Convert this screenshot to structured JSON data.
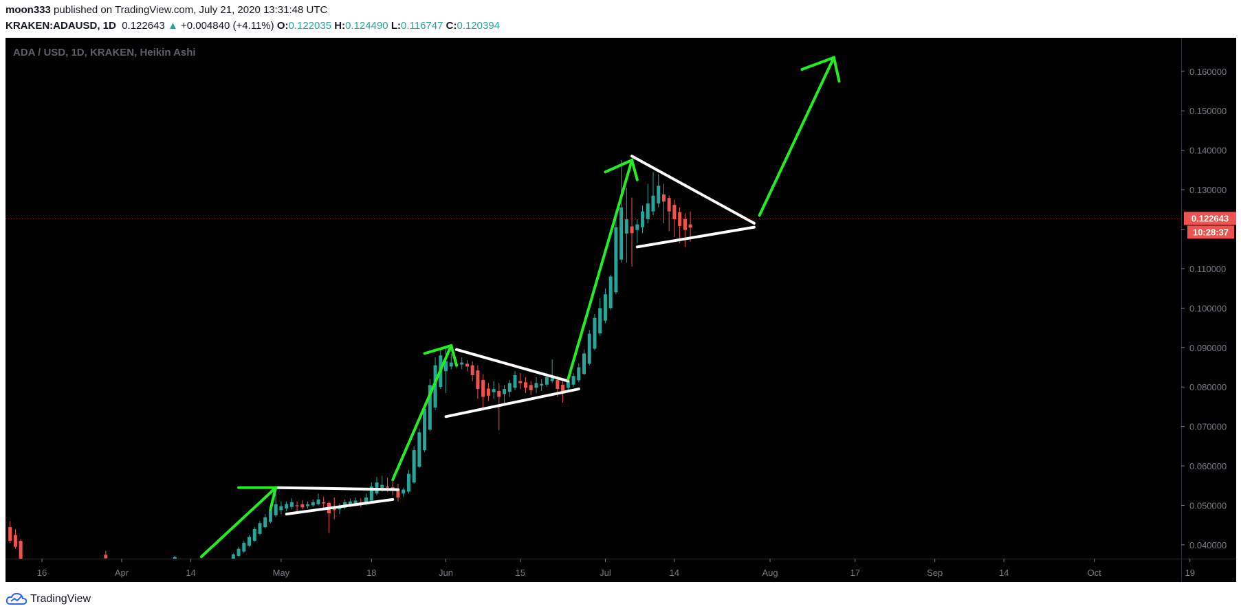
{
  "header": {
    "author": "moon333",
    "published_text": "published on TradingView.com, July 21, 2020 13:31:48 UTC",
    "symbol": "KRAKEN:ADAUSD, 1D",
    "last": "0.122643",
    "change_arrow": "▲",
    "change": "+0.004840 (+4.11%)",
    "o_label": "O:",
    "o": "0.122035",
    "h_label": "H:",
    "h": "0.124490",
    "l_label": "L:",
    "l": "0.116747",
    "c_label": "C:",
    "c": "0.120394"
  },
  "footer": {
    "brand": "TradingView"
  },
  "chart_data": {
    "type": "candlestick",
    "title": "ADA / USD, 1D, KRAKEN, Heikin Ashi",
    "chart_type": "Heikin Ashi",
    "background": "#000000",
    "up_color": "#26a69a",
    "down_color": "#ef5350",
    "drawing_arrow_color": "#22ee22",
    "drawing_line_color": "#ffffff",
    "ylim": [
      0.0365,
      0.1685
    ],
    "y_ticks": [
      "0.040000",
      "0.050000",
      "0.060000",
      "0.070000",
      "0.080000",
      "0.090000",
      "0.100000",
      "0.110000",
      "0.120000",
      "0.130000",
      "0.140000",
      "0.150000",
      "0.160000"
    ],
    "x_ticks": [
      {
        "label": "16",
        "day": -15
      },
      {
        "label": "Apr",
        "day": 0
      },
      {
        "label": "14",
        "day": 13
      },
      {
        "label": "May",
        "day": 30
      },
      {
        "label": "18",
        "day": 47
      },
      {
        "label": "Jun",
        "day": 61
      },
      {
        "label": "15",
        "day": 75
      },
      {
        "label": "Jul",
        "day": 91
      },
      {
        "label": "14",
        "day": 104
      },
      {
        "label": "Aug",
        "day": 122
      },
      {
        "label": "17",
        "day": 138
      },
      {
        "label": "Sep",
        "day": 153
      },
      {
        "label": "14",
        "day": 166
      },
      {
        "label": "Oct",
        "day": 183
      },
      {
        "label": "19",
        "day": 201
      }
    ],
    "price_label": {
      "value": 0.122643,
      "text": "0.122643",
      "countdown": "10:28:37",
      "color": "#ef5350"
    },
    "candles": [
      {
        "d": -21,
        "o": 0.0445,
        "h": 0.046,
        "l": 0.0405,
        "c": 0.041
      },
      {
        "d": -20,
        "o": 0.0425,
        "h": 0.044,
        "l": 0.039,
        "c": 0.0395
      },
      {
        "d": -19,
        "o": 0.041,
        "h": 0.0415,
        "l": 0.035,
        "c": 0.036
      },
      {
        "d": -3,
        "o": 0.0375,
        "h": 0.0385,
        "l": 0.0362,
        "c": 0.0366
      },
      {
        "d": 10,
        "o": 0.036,
        "h": 0.0372,
        "l": 0.0355,
        "c": 0.0369
      },
      {
        "d": 21,
        "o": 0.036,
        "h": 0.0378,
        "l": 0.0355,
        "c": 0.0376
      },
      {
        "d": 22,
        "o": 0.0372,
        "h": 0.0395,
        "l": 0.037,
        "c": 0.039
      },
      {
        "d": 23,
        "o": 0.0383,
        "h": 0.041,
        "l": 0.038,
        "c": 0.0405
      },
      {
        "d": 24,
        "o": 0.0398,
        "h": 0.0425,
        "l": 0.0395,
        "c": 0.042
      },
      {
        "d": 25,
        "o": 0.041,
        "h": 0.0445,
        "l": 0.0408,
        "c": 0.044
      },
      {
        "d": 26,
        "o": 0.0428,
        "h": 0.046,
        "l": 0.0425,
        "c": 0.0455
      },
      {
        "d": 27,
        "o": 0.0445,
        "h": 0.0478,
        "l": 0.0442,
        "c": 0.047
      },
      {
        "d": 28,
        "o": 0.0458,
        "h": 0.0492,
        "l": 0.0455,
        "c": 0.0488
      },
      {
        "d": 29,
        "o": 0.0475,
        "h": 0.0528,
        "l": 0.047,
        "c": 0.0503
      },
      {
        "d": 30,
        "o": 0.0488,
        "h": 0.051,
        "l": 0.0478,
        "c": 0.0498
      },
      {
        "d": 31,
        "o": 0.0492,
        "h": 0.051,
        "l": 0.0485,
        "c": 0.0503
      },
      {
        "d": 32,
        "o": 0.0496,
        "h": 0.0518,
        "l": 0.049,
        "c": 0.0508
      },
      {
        "d": 33,
        "o": 0.05,
        "h": 0.051,
        "l": 0.0478,
        "c": 0.0498
      },
      {
        "d": 34,
        "o": 0.0503,
        "h": 0.0513,
        "l": 0.049,
        "c": 0.0495
      },
      {
        "d": 35,
        "o": 0.0498,
        "h": 0.051,
        "l": 0.0492,
        "c": 0.0503
      },
      {
        "d": 36,
        "o": 0.05,
        "h": 0.0515,
        "l": 0.0496,
        "c": 0.0508
      },
      {
        "d": 37,
        "o": 0.0503,
        "h": 0.053,
        "l": 0.05,
        "c": 0.0515
      },
      {
        "d": 38,
        "o": 0.0508,
        "h": 0.0522,
        "l": 0.0488,
        "c": 0.0505
      },
      {
        "d": 39,
        "o": 0.0506,
        "h": 0.051,
        "l": 0.043,
        "c": 0.048
      },
      {
        "d": 40,
        "o": 0.0495,
        "h": 0.052,
        "l": 0.0465,
        "c": 0.0488
      },
      {
        "d": 41,
        "o": 0.049,
        "h": 0.0505,
        "l": 0.0478,
        "c": 0.0498
      },
      {
        "d": 42,
        "o": 0.0494,
        "h": 0.0515,
        "l": 0.049,
        "c": 0.0508
      },
      {
        "d": 43,
        "o": 0.05,
        "h": 0.0518,
        "l": 0.0496,
        "c": 0.051
      },
      {
        "d": 44,
        "o": 0.0505,
        "h": 0.052,
        "l": 0.0498,
        "c": 0.0512
      },
      {
        "d": 45,
        "o": 0.0508,
        "h": 0.0518,
        "l": 0.0495,
        "c": 0.0503
      },
      {
        "d": 46,
        "o": 0.0505,
        "h": 0.053,
        "l": 0.05,
        "c": 0.052
      },
      {
        "d": 47,
        "o": 0.0512,
        "h": 0.0558,
        "l": 0.0508,
        "c": 0.0548
      },
      {
        "d": 48,
        "o": 0.053,
        "h": 0.0572,
        "l": 0.0525,
        "c": 0.0558
      },
      {
        "d": 49,
        "o": 0.0544,
        "h": 0.0575,
        "l": 0.0535,
        "c": 0.0552
      },
      {
        "d": 50,
        "o": 0.0548,
        "h": 0.057,
        "l": 0.0535,
        "c": 0.0545
      },
      {
        "d": 51,
        "o": 0.0546,
        "h": 0.0562,
        "l": 0.0525,
        "c": 0.0538
      },
      {
        "d": 52,
        "o": 0.0542,
        "h": 0.0555,
        "l": 0.051,
        "c": 0.052
      },
      {
        "d": 53,
        "o": 0.053,
        "h": 0.0545,
        "l": 0.0522,
        "c": 0.054
      },
      {
        "d": 54,
        "o": 0.0535,
        "h": 0.059,
        "l": 0.053,
        "c": 0.058
      },
      {
        "d": 55,
        "o": 0.0558,
        "h": 0.065,
        "l": 0.0555,
        "c": 0.064
      },
      {
        "d": 56,
        "o": 0.0598,
        "h": 0.0695,
        "l": 0.0595,
        "c": 0.0685
      },
      {
        "d": 57,
        "o": 0.064,
        "h": 0.0755,
        "l": 0.0635,
        "c": 0.0745
      },
      {
        "d": 58,
        "o": 0.0692,
        "h": 0.082,
        "l": 0.0688,
        "c": 0.0805
      },
      {
        "d": 59,
        "o": 0.0748,
        "h": 0.0875,
        "l": 0.0742,
        "c": 0.0855
      },
      {
        "d": 60,
        "o": 0.08,
        "h": 0.0895,
        "l": 0.0795,
        "c": 0.088
      },
      {
        "d": 61,
        "o": 0.084,
        "h": 0.0905,
        "l": 0.0785,
        "c": 0.0865
      },
      {
        "d": 62,
        "o": 0.0852,
        "h": 0.0885,
        "l": 0.0845,
        "c": 0.0862
      },
      {
        "d": 63,
        "o": 0.0856,
        "h": 0.087,
        "l": 0.0848,
        "c": 0.0858
      },
      {
        "d": 64,
        "o": 0.0857,
        "h": 0.0875,
        "l": 0.0845,
        "c": 0.0862
      },
      {
        "d": 65,
        "o": 0.0859,
        "h": 0.0868,
        "l": 0.084,
        "c": 0.0852
      },
      {
        "d": 66,
        "o": 0.0855,
        "h": 0.0865,
        "l": 0.0815,
        "c": 0.083
      },
      {
        "d": 67,
        "o": 0.0842,
        "h": 0.0855,
        "l": 0.077,
        "c": 0.0795
      },
      {
        "d": 68,
        "o": 0.0818,
        "h": 0.0832,
        "l": 0.074,
        "c": 0.0775
      },
      {
        "d": 69,
        "o": 0.0796,
        "h": 0.081,
        "l": 0.0765,
        "c": 0.0778
      },
      {
        "d": 70,
        "o": 0.0787,
        "h": 0.0815,
        "l": 0.077,
        "c": 0.0795
      },
      {
        "d": 71,
        "o": 0.079,
        "h": 0.081,
        "l": 0.069,
        "c": 0.0775
      },
      {
        "d": 72,
        "o": 0.0782,
        "h": 0.0805,
        "l": 0.076,
        "c": 0.0795
      },
      {
        "d": 73,
        "o": 0.0788,
        "h": 0.0818,
        "l": 0.0775,
        "c": 0.081
      },
      {
        "d": 74,
        "o": 0.0798,
        "h": 0.084,
        "l": 0.0792,
        "c": 0.083
      },
      {
        "d": 75,
        "o": 0.0815,
        "h": 0.0835,
        "l": 0.0795,
        "c": 0.081
      },
      {
        "d": 76,
        "o": 0.0812,
        "h": 0.0825,
        "l": 0.0785,
        "c": 0.0798
      },
      {
        "d": 77,
        "o": 0.0805,
        "h": 0.0815,
        "l": 0.078,
        "c": 0.0792
      },
      {
        "d": 78,
        "o": 0.0798,
        "h": 0.0825,
        "l": 0.0785,
        "c": 0.081
      },
      {
        "d": 79,
        "o": 0.0804,
        "h": 0.082,
        "l": 0.079,
        "c": 0.0808
      },
      {
        "d": 80,
        "o": 0.0806,
        "h": 0.0835,
        "l": 0.08,
        "c": 0.0825
      },
      {
        "d": 81,
        "o": 0.0815,
        "h": 0.087,
        "l": 0.081,
        "c": 0.0822
      },
      {
        "d": 82,
        "o": 0.0818,
        "h": 0.0828,
        "l": 0.0775,
        "c": 0.0795
      },
      {
        "d": 83,
        "o": 0.0806,
        "h": 0.0815,
        "l": 0.076,
        "c": 0.079
      },
      {
        "d": 84,
        "o": 0.0798,
        "h": 0.0822,
        "l": 0.079,
        "c": 0.0815
      },
      {
        "d": 85,
        "o": 0.0806,
        "h": 0.0835,
        "l": 0.08,
        "c": 0.0828
      },
      {
        "d": 86,
        "o": 0.0817,
        "h": 0.086,
        "l": 0.0812,
        "c": 0.085
      },
      {
        "d": 87,
        "o": 0.0833,
        "h": 0.0895,
        "l": 0.083,
        "c": 0.0885
      },
      {
        "d": 88,
        "o": 0.0859,
        "h": 0.0945,
        "l": 0.0855,
        "c": 0.0935
      },
      {
        "d": 89,
        "o": 0.0897,
        "h": 0.0985,
        "l": 0.0893,
        "c": 0.0975
      },
      {
        "d": 90,
        "o": 0.0936,
        "h": 0.1025,
        "l": 0.093,
        "c": 0.1
      },
      {
        "d": 91,
        "o": 0.0968,
        "h": 0.105,
        "l": 0.0962,
        "c": 0.1035
      },
      {
        "d": 92,
        "o": 0.1,
        "h": 0.1085,
        "l": 0.0995,
        "c": 0.108
      },
      {
        "d": 93,
        "o": 0.104,
        "h": 0.1245,
        "l": 0.1035,
        "c": 0.1205
      },
      {
        "d": 94,
        "o": 0.1123,
        "h": 0.1375,
        "l": 0.1115,
        "c": 0.1255
      },
      {
        "d": 95,
        "o": 0.1189,
        "h": 0.1305,
        "l": 0.1115,
        "c": 0.1225
      },
      {
        "d": 96,
        "o": 0.1207,
        "h": 0.128,
        "l": 0.1105,
        "c": 0.119
      },
      {
        "d": 97,
        "o": 0.1198,
        "h": 0.1225,
        "l": 0.1165,
        "c": 0.1212
      },
      {
        "d": 98,
        "o": 0.1205,
        "h": 0.126,
        "l": 0.119,
        "c": 0.1245
      },
      {
        "d": 99,
        "o": 0.1225,
        "h": 0.1315,
        "l": 0.1215,
        "c": 0.1265
      },
      {
        "d": 100,
        "o": 0.1245,
        "h": 0.1345,
        "l": 0.1235,
        "c": 0.1285
      },
      {
        "d": 101,
        "o": 0.1265,
        "h": 0.134,
        "l": 0.1255,
        "c": 0.131
      },
      {
        "d": 102,
        "o": 0.1288,
        "h": 0.1315,
        "l": 0.1215,
        "c": 0.127
      },
      {
        "d": 103,
        "o": 0.1279,
        "h": 0.1285,
        "l": 0.1195,
        "c": 0.1245
      },
      {
        "d": 104,
        "o": 0.1262,
        "h": 0.1275,
        "l": 0.118,
        "c": 0.1225
      },
      {
        "d": 105,
        "o": 0.1243,
        "h": 0.1255,
        "l": 0.1165,
        "c": 0.1208
      },
      {
        "d": 106,
        "o": 0.1226,
        "h": 0.124,
        "l": 0.1155,
        "c": 0.1198
      },
      {
        "d": 107,
        "o": 0.1212,
        "h": 0.1245,
        "l": 0.1168,
        "c": 0.1204
      }
    ],
    "drawings": {
      "white_lines": [
        {
          "from": [
            29,
            0.0545
          ],
          "to": [
            52,
            0.054
          ]
        },
        {
          "from": [
            31,
            0.0478
          ],
          "to": [
            51,
            0.0515
          ]
        },
        {
          "from": [
            63,
            0.0895
          ],
          "to": [
            84,
            0.0815
          ]
        },
        {
          "from": [
            61,
            0.0725
          ],
          "to": [
            86,
            0.0795
          ]
        },
        {
          "from": [
            96,
            0.1385
          ],
          "to": [
            119,
            0.1215
          ]
        },
        {
          "from": [
            97,
            0.1155
          ],
          "to": [
            119,
            0.1205
          ]
        }
      ],
      "green_arrows": [
        {
          "path": [
            [
              15,
              0.037
            ],
            [
              29,
              0.0545
            ]
          ],
          "head": [
            [
              22,
              0.0545
            ],
            [
              29,
              0.0545
            ],
            [
              28,
              0.049
            ]
          ]
        },
        {
          "path": [
            [
              51,
              0.0565
            ],
            [
              62,
              0.0905
            ]
          ],
          "head": [
            [
              57,
              0.0885
            ],
            [
              62,
              0.0905
            ],
            [
              63,
              0.0855
            ]
          ]
        },
        {
          "path": [
            [
              84,
              0.082
            ],
            [
              96,
              0.1375
            ]
          ],
          "head": [
            [
              91,
              0.1345
            ],
            [
              96,
              0.1375
            ],
            [
              97,
              0.1325
            ]
          ]
        },
        {
          "path": [
            [
              120,
              0.1235
            ],
            [
              134,
              0.1635
            ]
          ],
          "head": [
            [
              128,
              0.1605
            ],
            [
              134,
              0.1635
            ],
            [
              135,
              0.1575
            ]
          ]
        }
      ]
    }
  }
}
